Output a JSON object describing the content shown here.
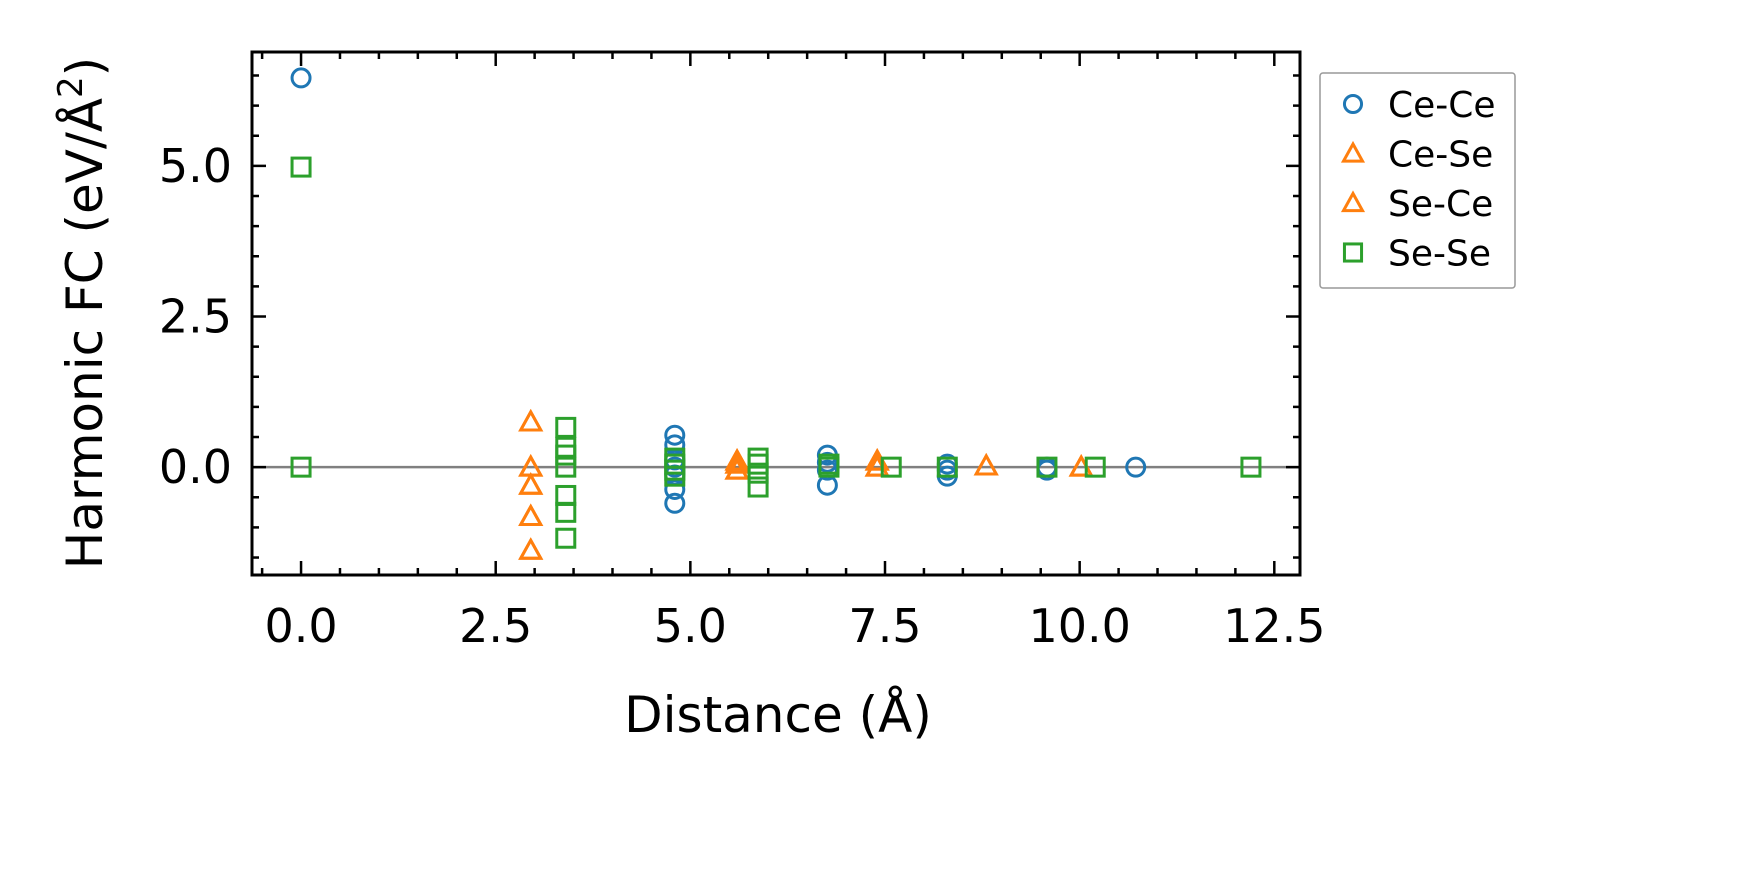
{
  "chart_data": {
    "type": "scatter",
    "title": "",
    "xlabel": "Distance (Å)",
    "ylabel": "Harmonic FC (eV/Å²)",
    "ylabel_main": "Harmonic FC (eV/Å",
    "ylabel_sup": "2",
    "ylabel_end": ")",
    "xlim": [
      -0.63,
      12.83
    ],
    "ylim": [
      -1.79,
      6.89
    ],
    "xticks": [
      0.0,
      2.5,
      5.0,
      7.5,
      10.0,
      12.5
    ],
    "xtick_labels": [
      "0.0",
      "2.5",
      "5.0",
      "7.5",
      "10.0",
      "12.5"
    ],
    "yticks": [
      0.0,
      2.5,
      5.0
    ],
    "ytick_labels": [
      "0.0",
      "2.5",
      "5.0"
    ],
    "grid": false,
    "zero_line": true,
    "legend_position": "outside-top-right",
    "series": [
      {
        "name": "Ce-Ce",
        "marker": "circle",
        "color": "#1f77b4",
        "x": [
          0,
          4.8,
          4.8,
          4.8,
          4.8,
          4.8,
          4.8,
          4.8,
          6.76,
          6.76,
          6.76,
          6.76,
          8.3,
          8.3,
          8.3,
          9.58,
          9.58,
          10.72
        ],
        "y": [
          6.46,
          0.53,
          0.37,
          0.12,
          0.0,
          -0.13,
          -0.37,
          -0.6,
          0.2,
          0.08,
          -0.05,
          -0.3,
          0.05,
          -0.05,
          -0.15,
          0.0,
          -0.05,
          0.0
        ]
      },
      {
        "name": "Ce-Se",
        "marker": "triangle",
        "color": "#ff7f0e",
        "x": [
          2.95,
          2.95,
          2.95,
          2.95,
          2.95,
          5.6,
          5.6,
          5.6,
          7.4,
          7.4,
          8.8,
          10.02
        ],
        "y": [
          0.75,
          0.0,
          -0.3,
          -0.82,
          -1.38,
          0.1,
          0.05,
          -0.05,
          0.1,
          0.0,
          0.02,
          0.0
        ]
      },
      {
        "name": "Se-Ce",
        "marker": "triangle",
        "color": "#ff7f0e",
        "x": [
          2.95,
          2.95,
          2.95,
          2.95,
          2.95,
          5.6,
          5.6,
          5.6,
          7.4,
          7.4,
          8.8,
          10.02
        ],
        "y": [
          0.75,
          0.0,
          -0.3,
          -0.82,
          -1.38,
          0.1,
          0.05,
          -0.05,
          0.1,
          0.0,
          0.02,
          0.0
        ]
      },
      {
        "name": "Se-Se",
        "marker": "square",
        "color": "#2ca02c",
        "x": [
          0,
          0,
          3.4,
          3.4,
          3.4,
          3.4,
          3.4,
          3.4,
          3.4,
          4.8,
          4.8,
          4.8,
          4.8,
          5.87,
          5.87,
          5.87,
          5.87,
          6.78,
          6.78,
          7.58,
          8.3,
          9.58,
          10.2,
          12.2
        ],
        "y": [
          4.98,
          0.0,
          0.66,
          0.33,
          0.2,
          0.0,
          -0.47,
          -0.75,
          -1.18,
          0.15,
          0.05,
          -0.05,
          -0.15,
          0.15,
          0.05,
          -0.1,
          -0.33,
          0.05,
          0.0,
          0.0,
          0.0,
          0.0,
          0.0,
          0.0
        ]
      }
    ]
  }
}
